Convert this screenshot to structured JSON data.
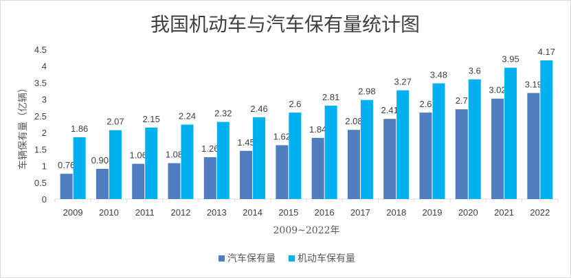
{
  "chart_data": {
    "type": "bar",
    "title": "我国机动车与汽车保有量统计图",
    "xlabel": "2009~2022年",
    "ylabel": "车辆保有量（亿辆）",
    "ylim": [
      0,
      4.5
    ],
    "yticks": [
      "0",
      "0.5",
      "1",
      "1.5",
      "2",
      "2.5",
      "3",
      "3.5",
      "4",
      "4.5"
    ],
    "categories": [
      "2009",
      "2010",
      "2011",
      "2012",
      "2013",
      "2014",
      "2015",
      "2016",
      "2017",
      "2018",
      "2019",
      "2020",
      "2021",
      "2022"
    ],
    "series": [
      {
        "name": "汽车保有量",
        "color": "#4f7dbf",
        "values": [
          0.76,
          0.908,
          1.06,
          1.08,
          1.26,
          1.45,
          1.62,
          1.84,
          2.08,
          2.41,
          2.6,
          2.7,
          3.02,
          3.19
        ],
        "labels": [
          "0.76",
          "0.908",
          "1.06",
          "1.08",
          "1.26",
          "1.45",
          "1.62",
          "1.84",
          "2.08",
          "2.41",
          "2.6",
          "2.7",
          "3.02",
          "3.19"
        ]
      },
      {
        "name": "机动车保有量",
        "color": "#00b0f0",
        "values": [
          1.86,
          2.07,
          2.15,
          2.24,
          2.32,
          2.46,
          2.6,
          2.81,
          2.98,
          3.27,
          3.48,
          3.6,
          3.95,
          4.17
        ],
        "labels": [
          "1.86",
          "2.07",
          "2.15",
          "2.24",
          "2.32",
          "2.46",
          "2.6",
          "2.81",
          "2.98",
          "3.27",
          "3.48",
          "3.6",
          "3.95",
          "4.17"
        ]
      }
    ],
    "legend_position": "bottom",
    "grid": false
  }
}
